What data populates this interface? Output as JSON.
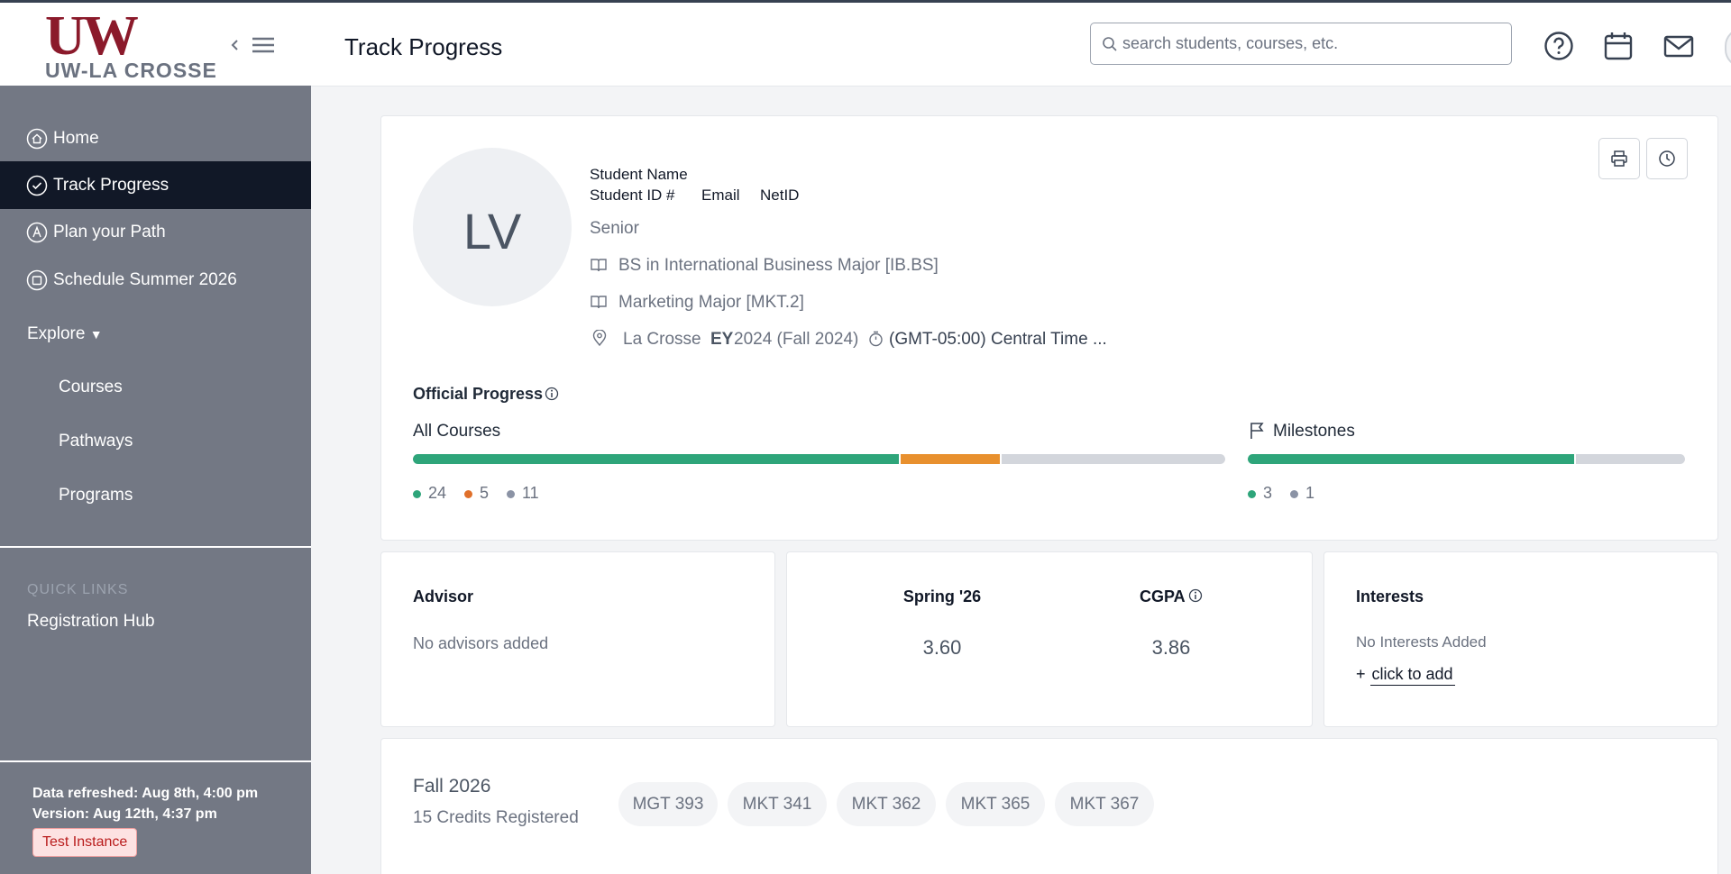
{
  "sidebar": {
    "logo": {
      "mark": "UW",
      "name": "UW-LA CROSSE"
    },
    "nav": [
      "Home",
      "Track Progress",
      "Plan your Path",
      "Schedule Summer 2026"
    ],
    "explore": "Explore",
    "explore_items": [
      "Courses",
      "Pathways",
      "Programs"
    ],
    "quick_links_title": "QUICK LINKS",
    "quick_links": [
      "Registration Hub"
    ],
    "footer": {
      "refreshed": "Data refreshed: Aug 8th, 4:00 pm",
      "version": "Version: Aug 12th, 4:37 pm",
      "badge": "Test Instance"
    }
  },
  "header": {
    "title": "Track Progress",
    "search_placeholder": "search students, courses, etc."
  },
  "profile": {
    "initials": "LV",
    "name": "Student Name",
    "id": "Student ID #",
    "email": "Email",
    "netid": "NetID",
    "class": "Senior",
    "programs": [
      "BS in International Business Major [IB.BS]",
      "Marketing Major [MKT.2]"
    ],
    "location": "La Crosse",
    "ey_label": "EY",
    "ey": "2024 (Fall 2024)",
    "timezone": "(GMT-05:00) Central Time ..."
  },
  "progress": {
    "title": "Official Progress",
    "all_courses": {
      "label": "All Courses",
      "segments": [
        {
          "value": 24,
          "color": "#2ea57a",
          "dot_color": "#2ea57a"
        },
        {
          "value": 5,
          "color": "#e8902e",
          "dot_color": "#e0702a"
        },
        {
          "value": 11,
          "color": "#d3d6dc",
          "dot_color": "#8b93a5"
        }
      ]
    },
    "milestones": {
      "label": "Milestones",
      "segments": [
        {
          "value": 3,
          "color": "#2ea57a",
          "dot_color": "#2ea57a"
        },
        {
          "value": 1,
          "color": "#d3d6dc",
          "dot_color": "#8b93a5"
        }
      ]
    }
  },
  "advisor": {
    "title": "Advisor",
    "empty": "No advisors added"
  },
  "gpa": {
    "term": "Spring '26",
    "term_gpa": "3.60",
    "cgpa_label": "CGPA",
    "cgpa": "3.86"
  },
  "interests": {
    "title": "Interests",
    "empty": "No Interests Added",
    "add": "click to add"
  },
  "upcoming": {
    "term": "Fall 2026",
    "credits": "15 Credits Registered",
    "courses": [
      "MGT 393",
      "MKT 341",
      "MKT 362",
      "MKT 365",
      "MKT 367"
    ]
  }
}
